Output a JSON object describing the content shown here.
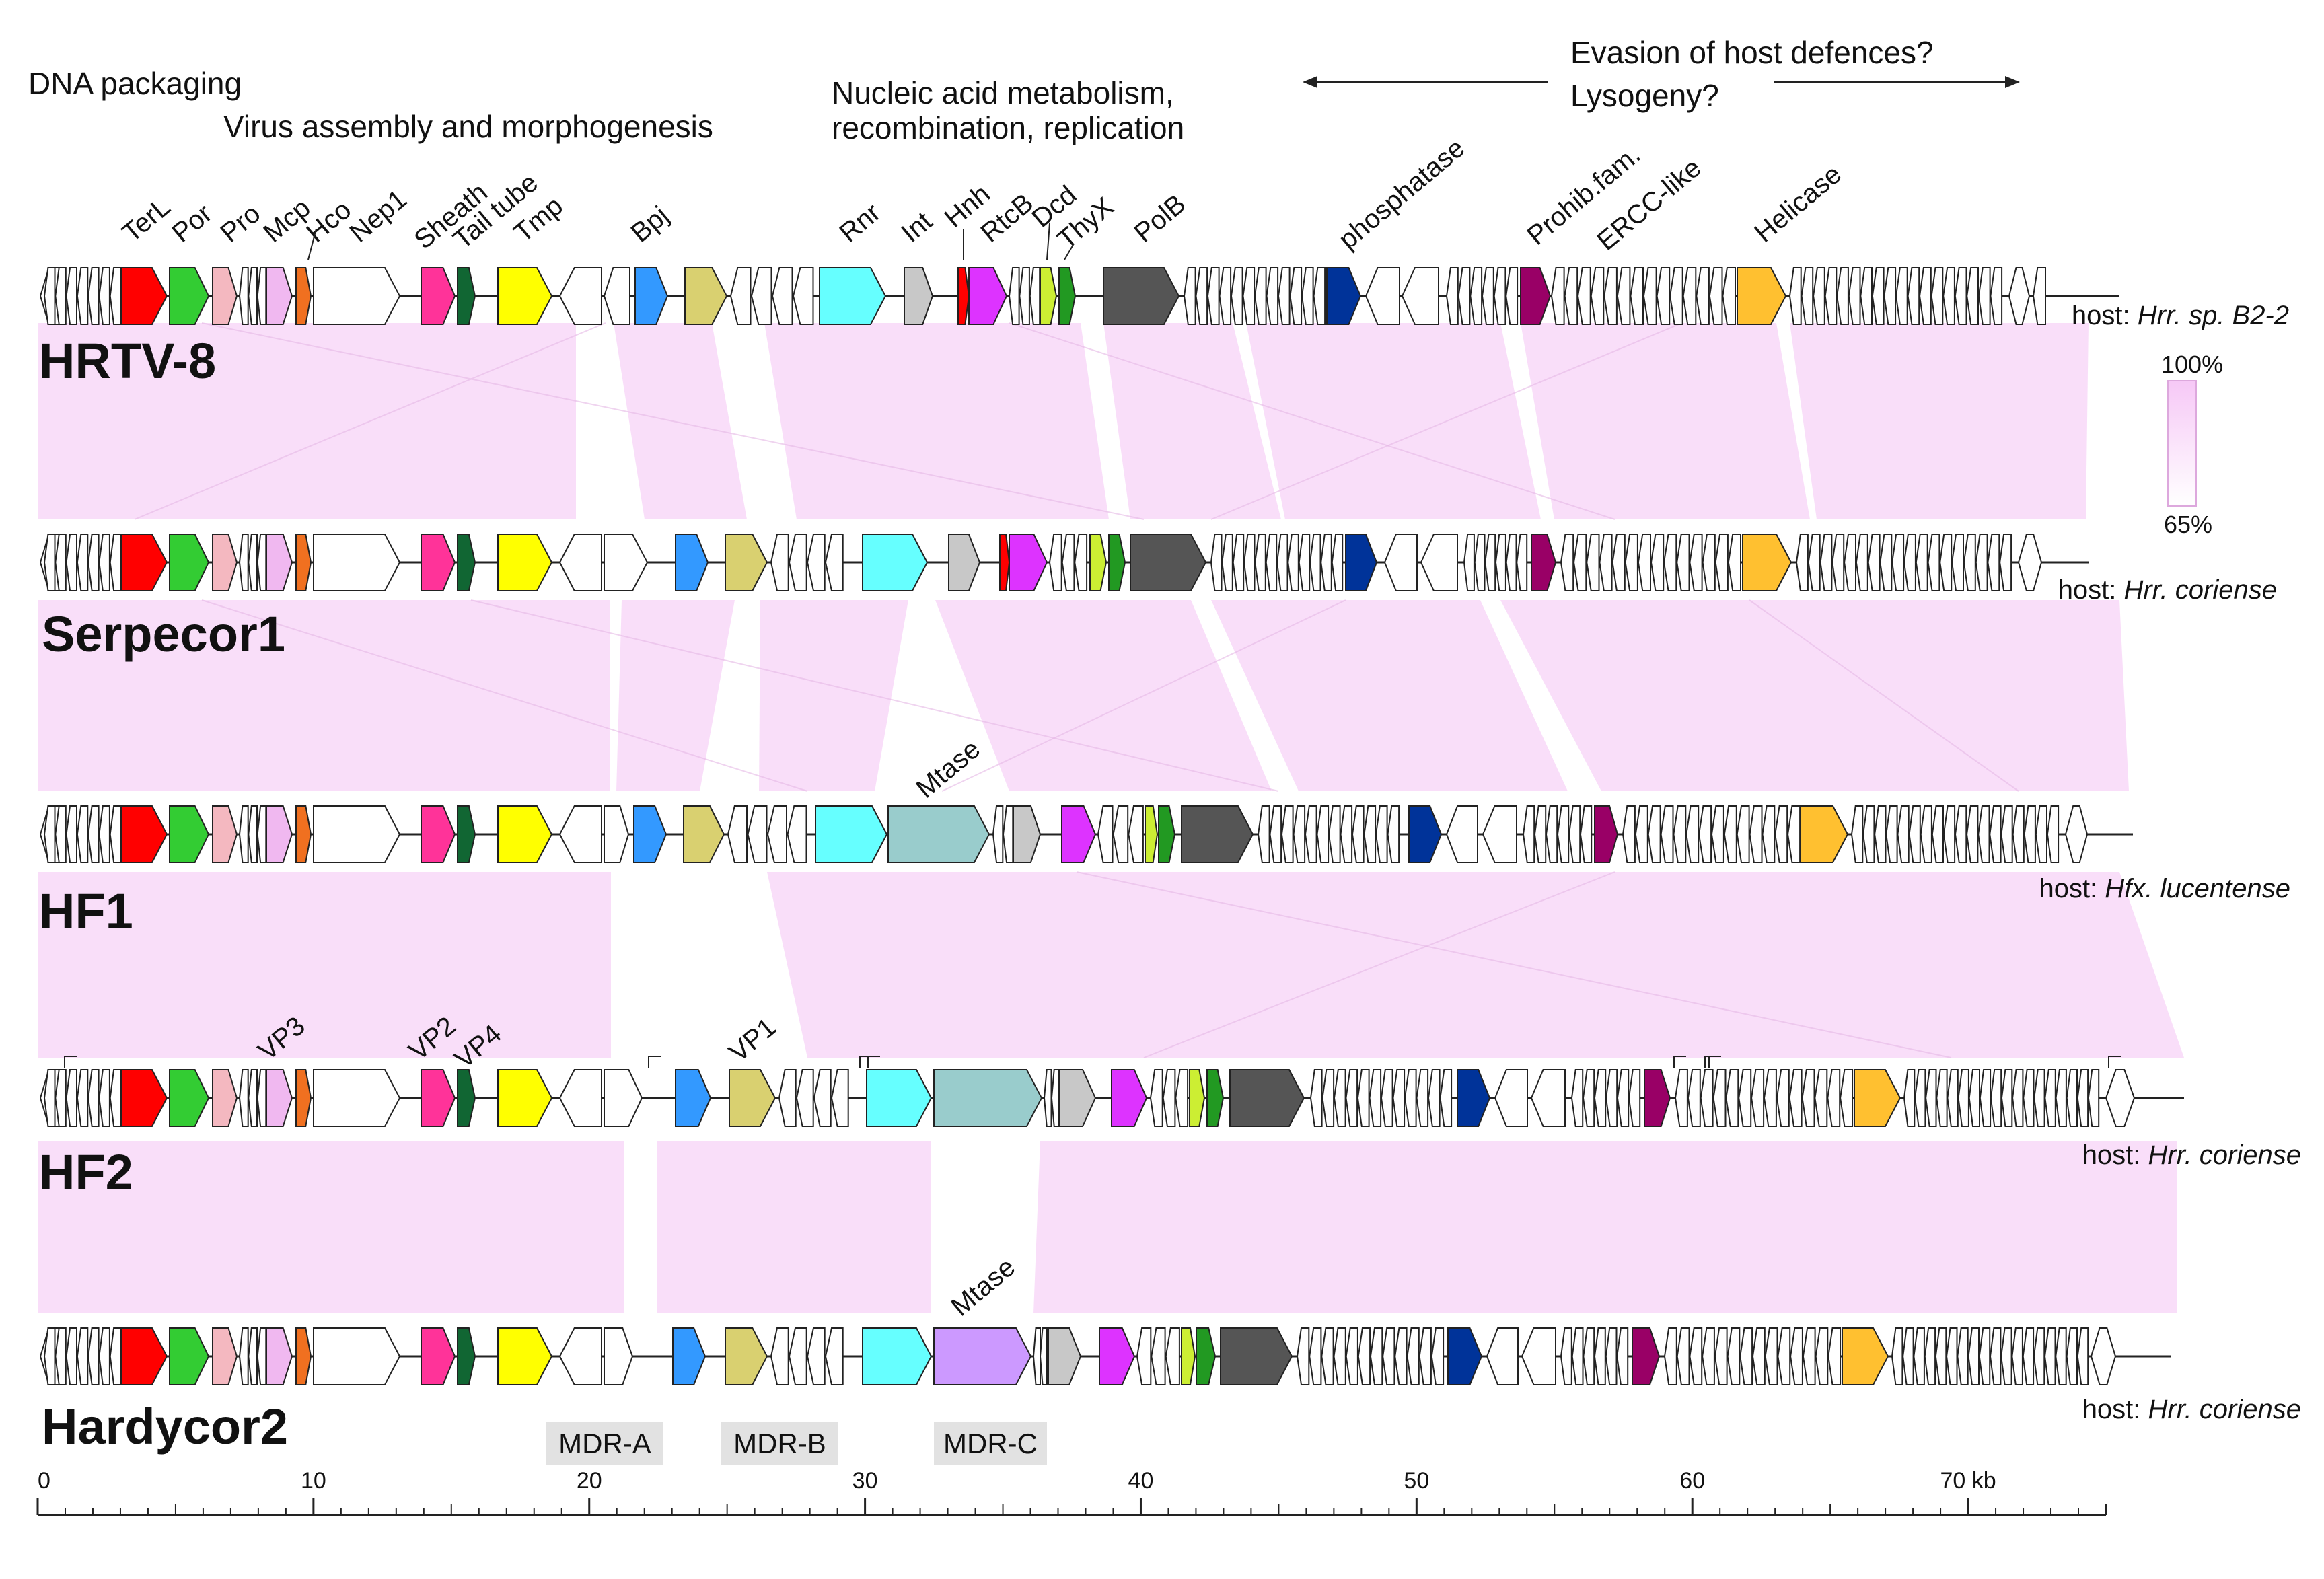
{
  "functions": {
    "dna_packaging": "DNA packaging",
    "virus_assembly": "Virus assembly and morphogenesis",
    "nucleic_acid_1": "Nucleic acid metabolism,",
    "nucleic_acid_2": "recombination, replication",
    "evasion": "Evasion of host defences?",
    "lysogeny": "Lysogeny?"
  },
  "gene_labels": [
    "TerL",
    "Por",
    "Pro",
    "Mcp",
    "Hco",
    "Nep1",
    "Sheath",
    "Tail tube",
    "Tmp",
    "Bpj",
    "Rnr",
    "Int",
    "Hnh",
    "RtcB",
    "Dcd",
    "ThyX",
    "PolB",
    "phosphatase",
    "Prohib.fam.",
    "ERCC-like",
    "Helicase"
  ],
  "genomes": [
    {
      "name": "HRTV-8",
      "host_prefix": "host: ",
      "host_species": "Hrr. sp. B2-2"
    },
    {
      "name": "Serpecor1",
      "host_prefix": "host: ",
      "host_species": "Hrr. coriense"
    },
    {
      "name": "HF1",
      "host_prefix": "host: ",
      "host_species": "Hfx. lucentense"
    },
    {
      "name": "HF2",
      "host_prefix": "host: ",
      "host_species": "Hrr. coriense"
    },
    {
      "name": "Hardycor2",
      "host_prefix": "host: ",
      "host_species": "Hrr. coriense"
    }
  ],
  "extra_labels": {
    "mtase_1": "Mtase",
    "mtase_2": "Mtase",
    "vp3": "VP3",
    "vp2": "VP2",
    "vp4": "VP4",
    "vp1": "VP1"
  },
  "legend": {
    "max": "100%",
    "min": "65%"
  },
  "mdr": [
    "MDR-A",
    "MDR-B",
    "MDR-C"
  ],
  "axis": {
    "ticks": [
      "0",
      "10",
      "20",
      "30",
      "40",
      "50",
      "60",
      "70 kb"
    ],
    "values": [
      0,
      10,
      20,
      30,
      40,
      50,
      60,
      70
    ],
    "max_kb": 75
  },
  "colors": {
    "TerL": "#ff0000",
    "Por": "#33cc33",
    "Pro": "#f4b8c0",
    "Mcp": "#f0b8f0",
    "Hco": "#f07020",
    "Nep1": "#ffffff",
    "Sheath": "#ff3399",
    "TailTube": "#116633",
    "Tmp": "#ffff00",
    "Bpj": "#3399ff",
    "BpjPartner": "#d9d070",
    "Rnr": "#66ffff",
    "Int": "#c8c8c8",
    "RtcB": "#dd33ff",
    "Dcd": "#ccee33",
    "ThyX": "#229922",
    "PolB": "#555555",
    "phosphatase": "#003399",
    "Prohib": "#990066",
    "Helicase": "#ffc030",
    "MtaseHF": "#99cccc",
    "MtaseHardy": "#cc99ff",
    "similarity": "#f8d8f8"
  }
}
